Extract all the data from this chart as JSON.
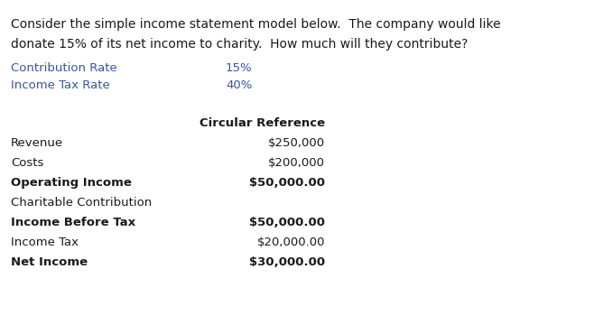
{
  "bg_color": "#ffffff",
  "header_text_line1": "Consider the simple income statement model below.  The company would like",
  "header_text_line2": "donate 15% of its net income to charity.  How much will they contribute?",
  "header_fontsize": 10.0,
  "header_color": "#1a1a1a",
  "blue_color": "#3355aa",
  "params": [
    {
      "label": "Contribution Rate",
      "value": "15%"
    },
    {
      "label": "Income Tax Rate",
      "value": "40%"
    }
  ],
  "param_fontsize": 9.5,
  "table_header": "Circular Reference",
  "table_header_fontsize": 9.5,
  "table_rows": [
    {
      "label": "Revenue",
      "value": "$250,000",
      "bold": false,
      "value_bold": false
    },
    {
      "label": "Costs",
      "value": "$200,000",
      "bold": false,
      "value_bold": false
    },
    {
      "label": "Operating Income",
      "value": "$50,000.00",
      "bold": true,
      "value_bold": true
    },
    {
      "label": "Charitable Contribution",
      "value": "",
      "bold": false,
      "value_bold": false
    },
    {
      "label": "Income Before Tax",
      "value": "$50,000.00",
      "bold": true,
      "value_bold": true
    },
    {
      "label": "Income Tax",
      "value": "$20,000.00",
      "bold": false,
      "value_bold": false
    },
    {
      "label": "Net Income",
      "value": "$30,000.00",
      "bold": true,
      "value_bold": true
    }
  ],
  "table_row_fontsize": 9.5
}
